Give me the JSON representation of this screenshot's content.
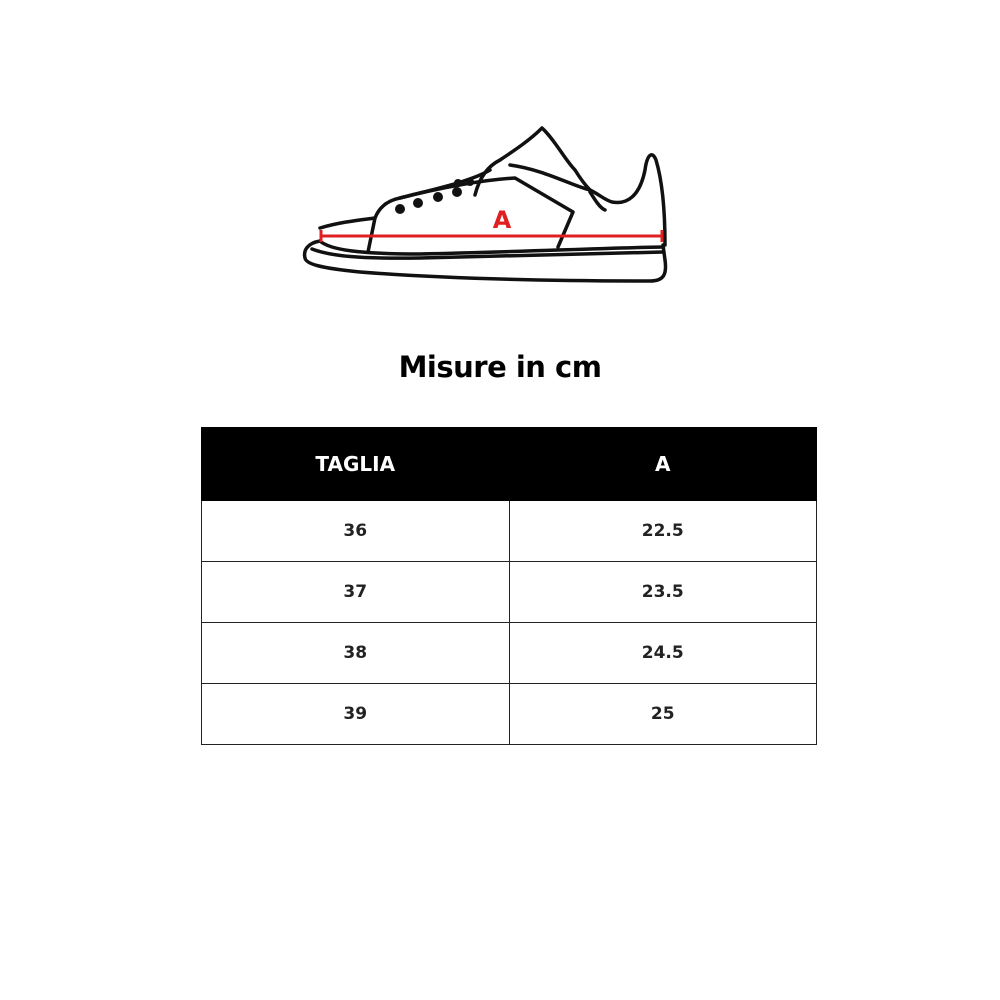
{
  "illustration": {
    "measure_label": "A",
    "measure_color": "#e02020"
  },
  "title": "Misure in cm",
  "table": {
    "headers": [
      "TAGLIA",
      "A"
    ],
    "rows": [
      [
        "36",
        "22.5"
      ],
      [
        "37",
        "23.5"
      ],
      [
        "38",
        "24.5"
      ],
      [
        "39",
        "25"
      ]
    ]
  }
}
